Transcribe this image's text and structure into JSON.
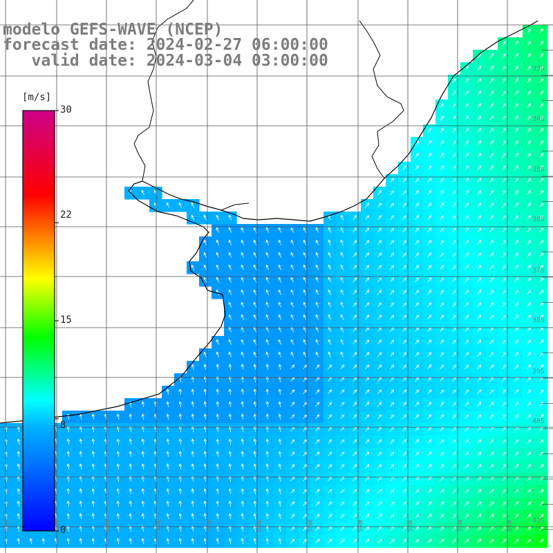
{
  "title": {
    "model": "modelo GEFS-WAVE (NCEP)",
    "forecast": "forecast date: 2024-02-27 06:00:00",
    "valid": "valid date: 2024-03-04 03:00:00"
  },
  "colorbar": {
    "units": "[m/s]",
    "range": [
      0,
      30
    ],
    "ticks": [
      "30",
      "22",
      "15",
      "8",
      "0"
    ],
    "tick_values": [
      30,
      22,
      15,
      8,
      0
    ],
    "colors": [
      "#0000ff",
      "#00b4ff",
      "#00ffff",
      "#00ff00",
      "#ffff00",
      "#ff0000",
      "#cc0088"
    ],
    "color_stops": [
      0,
      0.25,
      0.31,
      0.46,
      0.6,
      0.8,
      1.0
    ]
  },
  "map": {
    "extent_lon": [
      -70,
      -50
    ],
    "extent_lat": [
      -42,
      -28
    ],
    "land_color": "#ffffff",
    "coast_color": "#000000",
    "grid_color": "#505050",
    "lat_labels": [
      "33S",
      "34S",
      "35S",
      "36S",
      "37S",
      "38S",
      "39S",
      "40S",
      "41S"
    ],
    "lon_labels": [
      "61W",
      "60W",
      "59W",
      "58W",
      "57W",
      "56W",
      "55W",
      "54W",
      "53W",
      "52W",
      "51W"
    ],
    "arrow_color": "#ffffff",
    "wind_direction": "from south-west, pointing north-north-west over the estuary and north-east offshore"
  }
}
